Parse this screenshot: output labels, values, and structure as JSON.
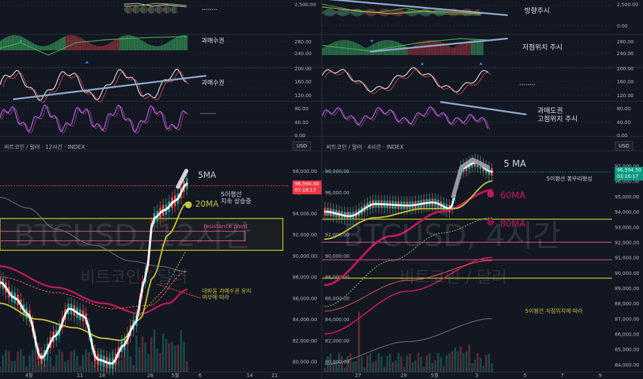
{
  "left": {
    "header": "비트코인 / 달러 · 12시간 · INDEX",
    "currency": "USD",
    "price_tag": {
      "value": "96,594.50",
      "time": "07:16:17",
      "color": "#f23645"
    },
    "watermark": {
      "main": "BTCUSD, 12시간",
      "sub": "비트코인 / 달러"
    },
    "indicator_axis": [
      "280.00",
      "240.00",
      "200.00",
      "160.00",
      "120.00",
      "80.00",
      "40.00",
      "0.00"
    ],
    "indicator_top_value": "2,500.00",
    "price_axis": [
      "98,000.00",
      "96,000.00",
      "94,000.00",
      "92,000.00",
      "90,000.00",
      "88,000.00",
      "86,000.00",
      "84,000.00",
      "82,000.00",
      "80,000.00"
    ],
    "time_axis": [
      "4월",
      "11",
      "18",
      "26",
      "5월",
      "6",
      "14",
      "21"
    ],
    "annotations": {
      "ind_dash1": "--------",
      "ind_label1": "과매수권",
      "ind_label2": "과매수권",
      "ind_dash2": "--------",
      "ma5": "5MA",
      "ma20": "20MA",
      "note1_l1": "5이평선",
      "note1_l2": "지속 상승중",
      "resistance": "resistance point",
      "note2_l1": "대파동 과매수권 유지",
      "note2_l2": "여부에 따라"
    },
    "colors": {
      "up": "#26a69a",
      "down": "#ef5350",
      "ma20": "#c8c23c",
      "zone": "#b0b22a",
      "pink": "#e0559a"
    }
  },
  "right": {
    "header": "비트코인 / 달러 · 4시간 · INDEX",
    "currency": "USD",
    "price_tag": {
      "value": "96,594.50",
      "time": "03:16:17",
      "color": "#089981"
    },
    "watermark": {
      "main": "BTCUSD, 4시간",
      "sub": "비트코인 / 달러"
    },
    "indicator_axis": [
      "0.00",
      "280.00",
      "240.00",
      "200.00",
      "160.00",
      "120.00",
      "80.00",
      "40.00",
      "0.00"
    ],
    "indicator_top_value": "2,500.00",
    "price_axis": [
      "97,000.00",
      "96,000.00",
      "95,000.00",
      "94,000.00",
      "93,000.00",
      "92,000.00",
      "91,000.00",
      "90,000.00",
      "89,000.00",
      "88,000.00",
      "87,000.00",
      "86,000.00",
      "85,000.00",
      "84,000.00"
    ],
    "left_price_axis": [
      "98,000.00",
      "96,000.00",
      "94,000.00",
      "92,000.00",
      "90,000.00",
      "88,000.00",
      "86,000.00",
      "84,000.00",
      "82,000.00",
      "80,000.00"
    ],
    "time_axis": [
      "27",
      "29",
      "5월",
      "3",
      "5",
      "7",
      "9"
    ],
    "annotations": {
      "ind_label1": "방향주시",
      "ind_label2": "저점위치 주시",
      "ind_dash": "--------",
      "ind_label3_l1": "과매도권",
      "ind_label3_l2": "고점위치 주시",
      "ma5": "5 MA",
      "ma60": "60MA",
      "ma80": "80MA",
      "note1": "5이평선 봉우리형성",
      "note2": "5이평선 저점위치에 따라"
    }
  },
  "chart_data": [
    {
      "type": "line",
      "title": "비트코인 / 달러 · 12시간 · INDEX",
      "ylim": [
        79000,
        99500
      ],
      "x": [
        "4월",
        "11",
        "18",
        "26",
        "5월"
      ],
      "series": [
        {
          "name": "5MA",
          "values": [
            86500,
            80500,
            84500,
            94200,
            96800
          ]
        },
        {
          "name": "20MA",
          "values": [
            83500,
            82000,
            83000,
            90000,
            95000
          ]
        }
      ],
      "last_price": 96594.5,
      "resistance_zone": [
        90500,
        93500
      ]
    },
    {
      "type": "line",
      "title": "비트코인 / 달러 · 4시간 · INDEX",
      "ylim": [
        83500,
        97700
      ],
      "x": [
        "27",
        "29",
        "5월",
        "3"
      ],
      "series": [
        {
          "name": "5 MA",
          "values": [
            94000,
            94300,
            94700,
            96800
          ]
        },
        {
          "name": "60MA",
          "values": [
            89000,
            92300,
            94000,
            95200
          ]
        },
        {
          "name": "80MA",
          "values": [
            87500,
            90500,
            92500,
            93400
          ]
        }
      ],
      "last_price": 96594.5
    }
  ]
}
